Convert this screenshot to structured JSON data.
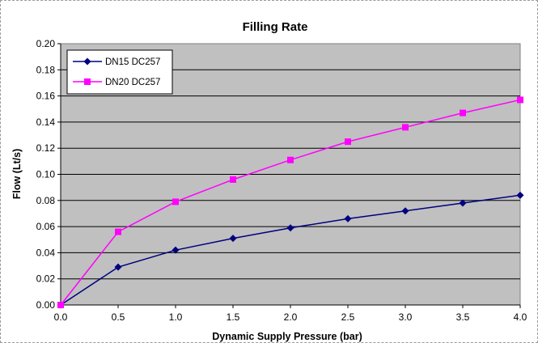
{
  "chart_data": {
    "type": "line",
    "title": "Filling Rate",
    "xlabel": "Dynamic Supply Pressure (bar)",
    "ylabel": "Flow (Lt/s)",
    "xlim": [
      0.0,
      4.0
    ],
    "ylim": [
      0.0,
      0.2
    ],
    "x_ticks": [
      "0.0",
      "0.5",
      "1.0",
      "1.5",
      "2.0",
      "2.5",
      "3.0",
      "3.5",
      "4.0"
    ],
    "y_ticks": [
      "0.00",
      "0.02",
      "0.04",
      "0.06",
      "0.08",
      "0.10",
      "0.12",
      "0.14",
      "0.16",
      "0.18",
      "0.20"
    ],
    "grid": "horizontal",
    "legend_position": "top-left",
    "plot_background": "#c0c0c0",
    "x": [
      0.0,
      0.5,
      1.0,
      1.5,
      2.0,
      2.5,
      3.0,
      3.5,
      4.0
    ],
    "series": [
      {
        "name": "DN15 DC257",
        "color": "#000080",
        "marker": "diamond",
        "values": [
          0.0,
          0.029,
          0.042,
          0.051,
          0.059,
          0.066,
          0.072,
          0.078,
          0.084
        ]
      },
      {
        "name": "DN20 DC257",
        "color": "#ff00ff",
        "marker": "square",
        "values": [
          0.0,
          0.056,
          0.079,
          0.096,
          0.111,
          0.125,
          0.136,
          0.147,
          0.157
        ]
      }
    ]
  }
}
